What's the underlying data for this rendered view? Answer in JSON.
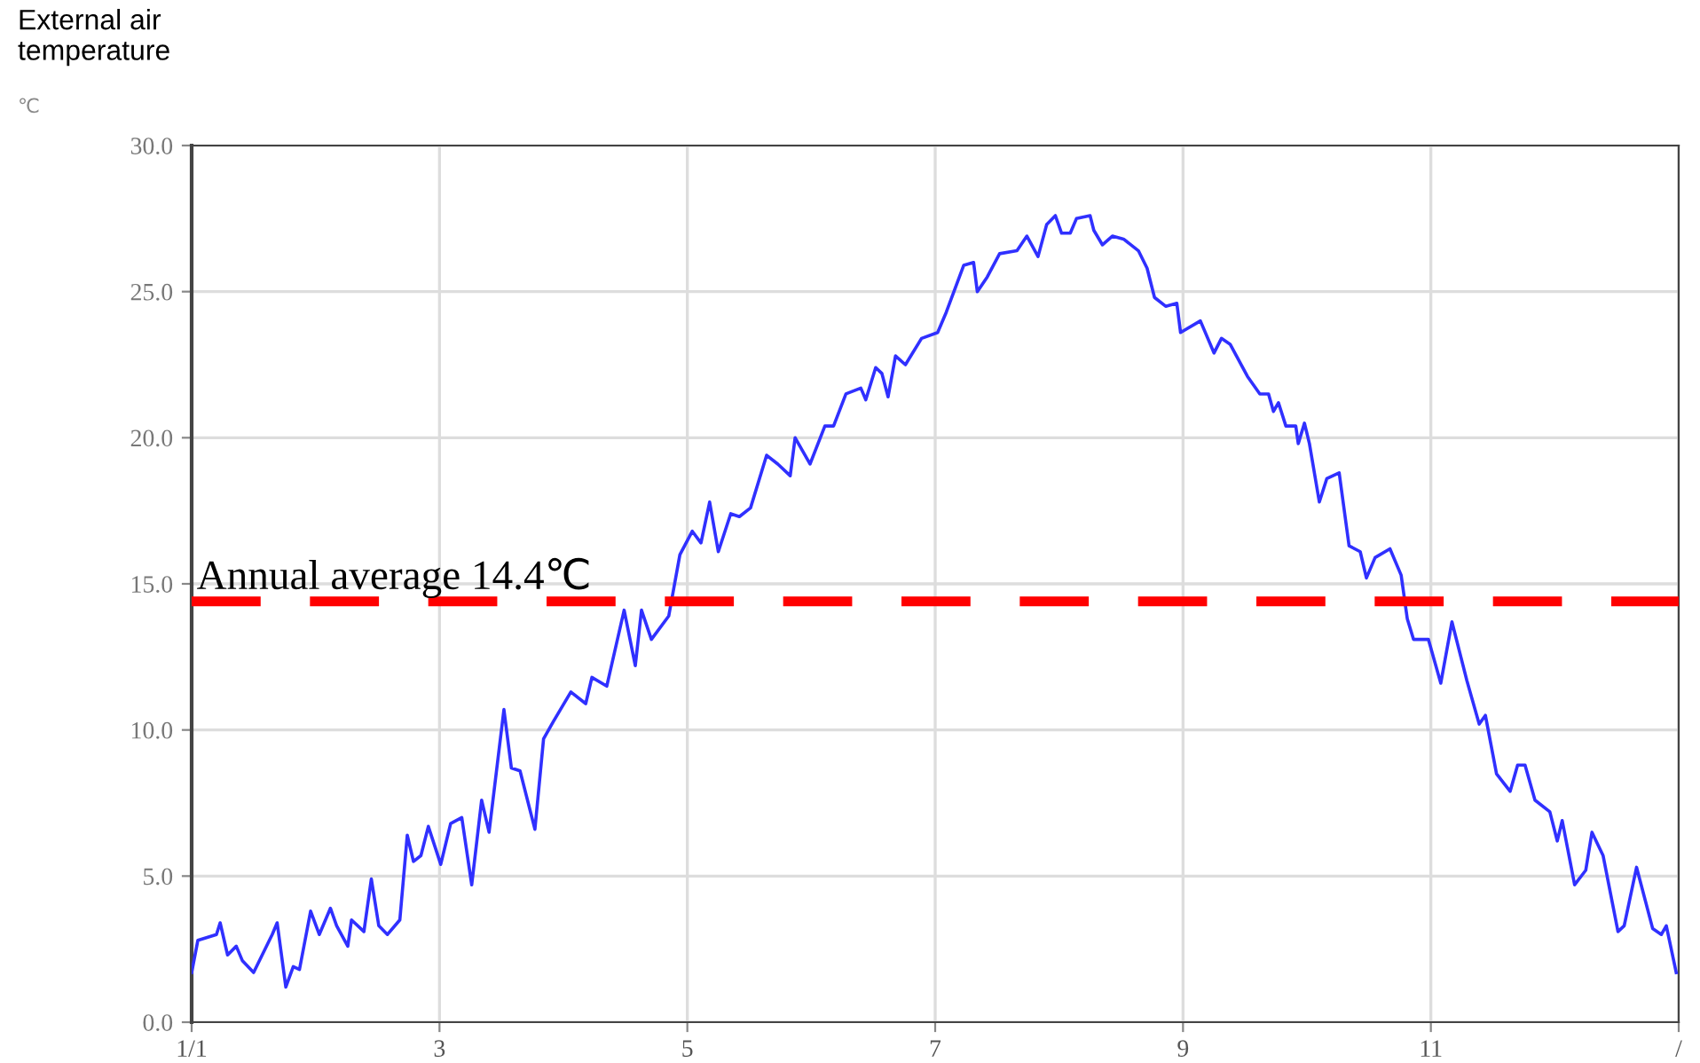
{
  "chart_data": {
    "type": "line",
    "ylabel": "External air temperature",
    "annotations": [
      "℃"
    ],
    "x": [
      1.0,
      1.05,
      1.2,
      1.23,
      1.29,
      1.36,
      1.41,
      1.5,
      1.65,
      1.69,
      1.76,
      1.82,
      1.87,
      1.96,
      2.03,
      2.12,
      2.17,
      2.26,
      2.29,
      2.39,
      2.45,
      2.51,
      2.58,
      2.68,
      2.74,
      2.79,
      2.85,
      2.91,
      3.01,
      3.09,
      3.18,
      3.26,
      3.34,
      3.4,
      3.52,
      3.58,
      3.65,
      3.77,
      3.84,
      3.92,
      3.99,
      4.06,
      4.18,
      4.23,
      4.35,
      4.49,
      4.58,
      4.63,
      4.71,
      4.85,
      4.94,
      5.04,
      5.11,
      5.18,
      5.25,
      5.35,
      5.42,
      5.51,
      5.64,
      5.73,
      5.83,
      5.87,
      5.99,
      6.11,
      6.18,
      6.28,
      6.4,
      6.44,
      6.52,
      6.57,
      6.62,
      6.68,
      6.76,
      6.89,
      7.02,
      7.09,
      7.23,
      7.31,
      7.34,
      7.42,
      7.52,
      7.66,
      7.74,
      7.83,
      7.9,
      7.97,
      8.02,
      8.09,
      8.14,
      8.25,
      8.28,
      8.35,
      8.43,
      8.52,
      8.64,
      8.71,
      8.77,
      8.86,
      8.95,
      8.98,
      9.14,
      9.25,
      9.31,
      9.38,
      9.52,
      9.62,
      9.69,
      9.73,
      9.77,
      9.83,
      9.91,
      9.93,
      9.98,
      10.02,
      10.1,
      10.16,
      10.26,
      10.34,
      10.43,
      10.48,
      10.55,
      10.67,
      10.76,
      10.81,
      10.86,
      10.98,
      11.08,
      11.17,
      11.29,
      11.39,
      11.44,
      11.53,
      11.64,
      11.7,
      11.76,
      11.84,
      11.96,
      12.02,
      12.06,
      12.16,
      12.25,
      12.3,
      12.39,
      12.51,
      12.56,
      12.66,
      12.79,
      12.86,
      12.9,
      12.98
    ],
    "series": [
      {
        "color": "#3030ff",
        "values": [
          1.7,
          2.8,
          3.0,
          3.4,
          2.3,
          2.6,
          2.1,
          1.7,
          3.0,
          3.4,
          1.2,
          1.9,
          1.8,
          3.8,
          3.0,
          3.9,
          3.3,
          2.6,
          3.5,
          3.1,
          4.9,
          3.3,
          3.0,
          3.5,
          6.4,
          5.5,
          5.7,
          6.7,
          5.4,
          6.8,
          7.0,
          4.7,
          7.6,
          6.5,
          10.7,
          8.7,
          8.6,
          6.6,
          9.7,
          10.3,
          10.8,
          11.3,
          10.9,
          11.8,
          11.5,
          14.1,
          12.2,
          14.1,
          13.1,
          13.9,
          16.0,
          16.8,
          16.4,
          17.8,
          16.1,
          17.4,
          17.3,
          17.6,
          19.4,
          19.1,
          18.7,
          20.0,
          19.1,
          20.4,
          20.4,
          21.5,
          21.7,
          21.3,
          22.4,
          22.2,
          21.4,
          22.8,
          22.5,
          23.4,
          23.6,
          24.3,
          25.9,
          26.0,
          25.0,
          25.5,
          26.3,
          26.4,
          26.9,
          26.2,
          27.3,
          27.6,
          27.0,
          27.0,
          27.5,
          27.6,
          27.1,
          26.6,
          26.9,
          26.8,
          26.4,
          25.8,
          24.8,
          24.5,
          24.6,
          23.6,
          24.0,
          22.9,
          23.4,
          23.2,
          22.1,
          21.5,
          21.5,
          20.9,
          21.2,
          20.4,
          20.4,
          19.8,
          20.5,
          19.8,
          17.8,
          18.6,
          18.8,
          16.3,
          16.1,
          15.2,
          15.9,
          16.2,
          15.3,
          13.8,
          13.1,
          13.1,
          11.6,
          13.7,
          11.7,
          10.2,
          10.5,
          8.5,
          7.9,
          8.8,
          8.8,
          7.6,
          7.2,
          6.2,
          6.9,
          4.7,
          5.2,
          6.5,
          5.7,
          3.1,
          3.3,
          5.3,
          3.2,
          3.0,
          3.3,
          1.7
        ]
      }
    ],
    "xlim": [
      1,
      13
    ],
    "xticks": [
      {
        "value": 1,
        "label": "1/1"
      },
      3,
      5,
      7,
      9,
      11,
      {
        "value": 13,
        "label": "/"
      }
    ],
    "ylim": [
      0,
      30
    ],
    "yticks": [
      {
        "value": 0,
        "label": "0.0"
      },
      {
        "value": 5,
        "label": "5.0"
      },
      {
        "value": 10,
        "label": "10.0"
      },
      {
        "value": 15,
        "label": "15.0"
      },
      {
        "value": 20,
        "label": "20.0"
      },
      {
        "value": 25,
        "label": "25.0"
      },
      {
        "value": 30,
        "label": "30.0"
      }
    ],
    "ref_lines": [
      {
        "axis": "y",
        "value": 14.4,
        "label": "Annual average 14.4℃",
        "color": "#ff0000",
        "line_style": "dashed"
      }
    ],
    "grid": true,
    "legend": false,
    "marker": "none",
    "line_style": "solid"
  }
}
